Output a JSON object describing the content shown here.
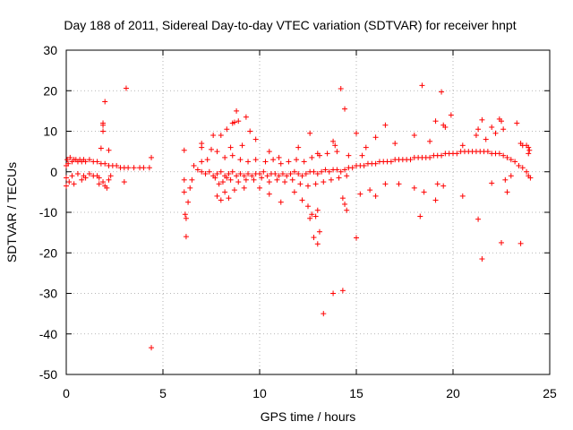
{
  "chart_data": {
    "type": "scatter",
    "title": "Day 188 of 2011, Sidereal Day-to-day VTEC variation (SDTVAR) for receiver hnpt",
    "xlabel": "GPS time / hours",
    "ylabel": "SDTVAR / TECUs",
    "xlim": [
      0,
      25
    ],
    "ylim": [
      -50,
      30
    ],
    "xticks": [
      0,
      5,
      10,
      15,
      20,
      25
    ],
    "yticks": [
      -50,
      -40,
      -30,
      -20,
      -10,
      0,
      10,
      20,
      30
    ],
    "grid": true,
    "marker": "plus",
    "color": "#ff0000",
    "series": [
      {
        "name": "SDTVAR",
        "points": [
          [
            0.0,
            1.5
          ],
          [
            0.0,
            -1.5
          ],
          [
            0.0,
            -3.5
          ],
          [
            0.05,
            3.0
          ],
          [
            0.1,
            2.0
          ],
          [
            0.15,
            -2.5
          ],
          [
            0.2,
            3.5
          ],
          [
            0.3,
            2.5
          ],
          [
            0.4,
            3.0
          ],
          [
            0.5,
            3.0
          ],
          [
            0.6,
            2.5
          ],
          [
            0.7,
            3.0
          ],
          [
            0.8,
            2.5
          ],
          [
            0.9,
            3.0
          ],
          [
            1.0,
            2.5
          ],
          [
            1.2,
            3.0
          ],
          [
            1.4,
            2.5
          ],
          [
            1.6,
            2.5
          ],
          [
            1.8,
            2.0
          ],
          [
            2.0,
            2.0
          ],
          [
            2.2,
            1.5
          ],
          [
            2.4,
            1.5
          ],
          [
            2.6,
            1.5
          ],
          [
            2.8,
            1.0
          ],
          [
            3.0,
            1.0
          ],
          [
            3.2,
            1.0
          ],
          [
            3.5,
            1.0
          ],
          [
            3.8,
            1.0
          ],
          [
            4.0,
            1.0
          ],
          [
            4.3,
            1.0
          ],
          [
            0.3,
            -1.0
          ],
          [
            0.6,
            -0.5
          ],
          [
            0.9,
            -1.0
          ],
          [
            1.2,
            -0.5
          ],
          [
            1.6,
            -1.0
          ],
          [
            1.9,
            -2.5
          ],
          [
            2.0,
            -3.5
          ],
          [
            2.1,
            -4.0
          ],
          [
            2.2,
            -2.0
          ],
          [
            1.7,
            -1.5
          ],
          [
            0.8,
            -2.0
          ],
          [
            0.4,
            -3.0
          ],
          [
            1.0,
            -1.5
          ],
          [
            1.4,
            -1.0
          ],
          [
            1.7,
            -3.0
          ],
          [
            2.3,
            -1.0
          ],
          [
            2.0,
            17.3
          ],
          [
            3.1,
            20.6
          ],
          [
            1.9,
            12.0
          ],
          [
            1.9,
            11.5
          ],
          [
            1.9,
            10.0
          ],
          [
            2.2,
            5.3
          ],
          [
            1.8,
            5.8
          ],
          [
            4.4,
            -43.4
          ],
          [
            4.4,
            3.5
          ],
          [
            3.0,
            -2.5
          ],
          [
            6.1,
            5.3
          ],
          [
            6.1,
            -2.0
          ],
          [
            6.1,
            -5.0
          ],
          [
            6.15,
            -10.5
          ],
          [
            6.2,
            -11.5
          ],
          [
            6.2,
            -16.0
          ],
          [
            6.3,
            -7.5
          ],
          [
            6.4,
            -4.0
          ],
          [
            6.5,
            -2.0
          ],
          [
            6.6,
            1.5
          ],
          [
            6.8,
            0.5
          ],
          [
            7.0,
            0.0
          ],
          [
            7.2,
            -0.5
          ],
          [
            7.4,
            0.0
          ],
          [
            7.6,
            -1.0
          ],
          [
            7.8,
            -0.5
          ],
          [
            8.0,
            0.0
          ],
          [
            8.2,
            -1.0
          ],
          [
            8.4,
            -0.5
          ],
          [
            8.6,
            0.0
          ],
          [
            8.8,
            -1.0
          ],
          [
            9.0,
            -0.5
          ],
          [
            9.2,
            -1.0
          ],
          [
            9.4,
            -0.5
          ],
          [
            9.6,
            -1.0
          ],
          [
            9.8,
            -0.5
          ],
          [
            10.0,
            -0.5
          ],
          [
            10.2,
            0.0
          ],
          [
            10.4,
            -1.0
          ],
          [
            10.6,
            -0.5
          ],
          [
            10.8,
            -0.5
          ],
          [
            11.0,
            -1.0
          ],
          [
            11.2,
            -0.5
          ],
          [
            11.4,
            -1.0
          ],
          [
            11.6,
            -0.5
          ],
          [
            11.8,
            0.0
          ],
          [
            12.0,
            -0.5
          ],
          [
            12.2,
            -1.0
          ],
          [
            12.4,
            -0.5
          ],
          [
            12.6,
            0.0
          ],
          [
            12.8,
            0.0
          ],
          [
            13.0,
            -0.5
          ],
          [
            13.2,
            0.0
          ],
          [
            13.4,
            0.5
          ],
          [
            13.6,
            0.0
          ],
          [
            13.8,
            0.5
          ],
          [
            14.0,
            0.5
          ],
          [
            14.2,
            0.0
          ],
          [
            14.4,
            0.5
          ],
          [
            14.6,
            1.0
          ],
          [
            14.8,
            1.0
          ],
          [
            15.0,
            1.5
          ],
          [
            15.2,
            1.5
          ],
          [
            15.4,
            1.5
          ],
          [
            15.6,
            2.0
          ],
          [
            15.8,
            2.0
          ],
          [
            16.0,
            2.0
          ],
          [
            16.2,
            2.5
          ],
          [
            16.4,
            2.5
          ],
          [
            16.6,
            2.5
          ],
          [
            16.8,
            2.5
          ],
          [
            17.0,
            3.0
          ],
          [
            17.2,
            3.0
          ],
          [
            17.4,
            3.0
          ],
          [
            17.6,
            3.0
          ],
          [
            17.8,
            3.0
          ],
          [
            18.0,
            3.5
          ],
          [
            18.2,
            3.5
          ],
          [
            18.4,
            3.5
          ],
          [
            18.6,
            3.5
          ],
          [
            18.8,
            3.5
          ],
          [
            19.0,
            4.0
          ],
          [
            19.2,
            4.0
          ],
          [
            19.4,
            4.0
          ],
          [
            19.6,
            4.5
          ],
          [
            19.8,
            4.5
          ],
          [
            20.0,
            4.5
          ],
          [
            20.2,
            4.5
          ],
          [
            20.4,
            5.0
          ],
          [
            20.6,
            5.0
          ],
          [
            20.8,
            5.0
          ],
          [
            21.0,
            5.0
          ],
          [
            21.2,
            5.0
          ],
          [
            21.4,
            5.0
          ],
          [
            21.6,
            5.0
          ],
          [
            21.8,
            5.0
          ],
          [
            22.0,
            4.5
          ],
          [
            22.2,
            4.5
          ],
          [
            22.4,
            4.5
          ],
          [
            22.6,
            4.0
          ],
          [
            22.8,
            3.5
          ],
          [
            23.0,
            3.0
          ],
          [
            23.2,
            2.5
          ],
          [
            23.4,
            1.5
          ],
          [
            23.6,
            1.0
          ],
          [
            23.8,
            0.0
          ],
          [
            23.9,
            -1.0
          ],
          [
            24.0,
            -1.5
          ],
          [
            23.95,
            5.3
          ],
          [
            23.9,
            6.0
          ],
          [
            23.9,
            4.5
          ],
          [
            23.8,
            6.5
          ],
          [
            7.7,
            -1.5
          ],
          [
            7.9,
            -3.0
          ],
          [
            8.1,
            -2.5
          ],
          [
            8.3,
            -1.5
          ],
          [
            8.5,
            -2.0
          ],
          [
            8.9,
            -2.5
          ],
          [
            9.3,
            -2.0
          ],
          [
            9.7,
            -2.0
          ],
          [
            10.1,
            -1.5
          ],
          [
            10.5,
            -2.5
          ],
          [
            10.9,
            -2.0
          ],
          [
            11.3,
            -2.5
          ],
          [
            11.7,
            -2.0
          ],
          [
            12.1,
            -3.0
          ],
          [
            12.5,
            -3.5
          ],
          [
            12.9,
            -3.0
          ],
          [
            13.3,
            -2.5
          ],
          [
            13.7,
            -2.0
          ],
          [
            14.1,
            -1.5
          ],
          [
            14.5,
            -1.0
          ],
          [
            7.0,
            2.5
          ],
          [
            7.3,
            3.0
          ],
          [
            7.8,
            5.0
          ],
          [
            8.2,
            3.5
          ],
          [
            8.6,
            4.0
          ],
          [
            9.0,
            3.0
          ],
          [
            9.4,
            2.5
          ],
          [
            9.8,
            3.0
          ],
          [
            10.3,
            2.5
          ],
          [
            10.7,
            3.0
          ],
          [
            11.1,
            2.0
          ],
          [
            11.5,
            2.5
          ],
          [
            11.9,
            3.0
          ],
          [
            12.3,
            2.5
          ],
          [
            12.7,
            3.5
          ],
          [
            13.1,
            4.0
          ],
          [
            13.5,
            4.5
          ],
          [
            14.0,
            5.0
          ],
          [
            14.6,
            4.0
          ],
          [
            15.3,
            4.0
          ],
          [
            7.0,
            6.0
          ],
          [
            7.0,
            7.0
          ],
          [
            7.6,
            9.0
          ],
          [
            7.5,
            5.5
          ],
          [
            8.0,
            9.0
          ],
          [
            8.3,
            10.5
          ],
          [
            8.6,
            12.0
          ],
          [
            8.7,
            12.2
          ],
          [
            8.8,
            15.0
          ],
          [
            8.9,
            12.5
          ],
          [
            8.5,
            6.0
          ],
          [
            9.1,
            6.5
          ],
          [
            9.3,
            13.5
          ],
          [
            9.5,
            10.0
          ],
          [
            9.8,
            8.0
          ],
          [
            10.5,
            5.0
          ],
          [
            11.0,
            3.5
          ],
          [
            12.0,
            6.0
          ],
          [
            12.6,
            9.5
          ],
          [
            13.0,
            4.5
          ],
          [
            13.8,
            7.5
          ],
          [
            13.9,
            6.5
          ],
          [
            14.2,
            20.5
          ],
          [
            14.4,
            15.5
          ],
          [
            15.0,
            9.5
          ],
          [
            15.5,
            6.0
          ],
          [
            16.0,
            8.5
          ],
          [
            16.5,
            11.5
          ],
          [
            17.0,
            7.0
          ],
          [
            18.0,
            9.0
          ],
          [
            18.4,
            21.3
          ],
          [
            18.8,
            7.5
          ],
          [
            19.1,
            12.5
          ],
          [
            19.4,
            19.7
          ],
          [
            19.5,
            11.5
          ],
          [
            19.6,
            11.0
          ],
          [
            19.9,
            14.0
          ],
          [
            20.5,
            6.5
          ],
          [
            21.2,
            9.0
          ],
          [
            21.3,
            10.5
          ],
          [
            21.5,
            12.8
          ],
          [
            21.7,
            8.0
          ],
          [
            22.0,
            11.0
          ],
          [
            22.2,
            9.5
          ],
          [
            22.4,
            13.0
          ],
          [
            22.5,
            12.5
          ],
          [
            22.6,
            10.5
          ],
          [
            23.3,
            12.0
          ],
          [
            23.6,
            6.5
          ],
          [
            23.5,
            7.0
          ],
          [
            7.8,
            -6.0
          ],
          [
            8.0,
            -7.0
          ],
          [
            8.2,
            -5.0
          ],
          [
            8.4,
            -6.5
          ],
          [
            8.7,
            -4.5
          ],
          [
            9.2,
            -4.0
          ],
          [
            10.0,
            -4.0
          ],
          [
            10.5,
            -5.5
          ],
          [
            11.1,
            -7.5
          ],
          [
            11.8,
            -5.0
          ],
          [
            12.2,
            -7.0
          ],
          [
            12.5,
            -8.5
          ],
          [
            12.6,
            -11.5
          ],
          [
            12.7,
            -10.5
          ],
          [
            12.8,
            -16.2
          ],
          [
            13.0,
            -17.8
          ],
          [
            13.1,
            -14.8
          ],
          [
            13.0,
            -9.5
          ],
          [
            12.9,
            -11.0
          ],
          [
            13.3,
            -35.0
          ],
          [
            13.8,
            -30.0
          ],
          [
            14.3,
            -29.3
          ],
          [
            14.3,
            -6.5
          ],
          [
            14.4,
            -8.0
          ],
          [
            14.5,
            -9.5
          ],
          [
            15.0,
            -16.3
          ],
          [
            15.2,
            -5.5
          ],
          [
            15.7,
            -4.5
          ],
          [
            16.0,
            -6.0
          ],
          [
            16.5,
            -3.0
          ],
          [
            17.2,
            -3.0
          ],
          [
            18.0,
            -4.0
          ],
          [
            18.3,
            -11.0
          ],
          [
            18.5,
            -5.0
          ],
          [
            19.1,
            -7.0
          ],
          [
            19.5,
            -3.5
          ],
          [
            19.2,
            -3.0
          ],
          [
            20.5,
            -6.0
          ],
          [
            21.3,
            -11.7
          ],
          [
            21.5,
            -21.5
          ],
          [
            22.0,
            -2.8
          ],
          [
            22.5,
            -17.5
          ],
          [
            22.8,
            -5.0
          ],
          [
            23.5,
            -17.7
          ],
          [
            23.0,
            -1.0
          ],
          [
            22.7,
            -2.0
          ]
        ]
      }
    ]
  }
}
